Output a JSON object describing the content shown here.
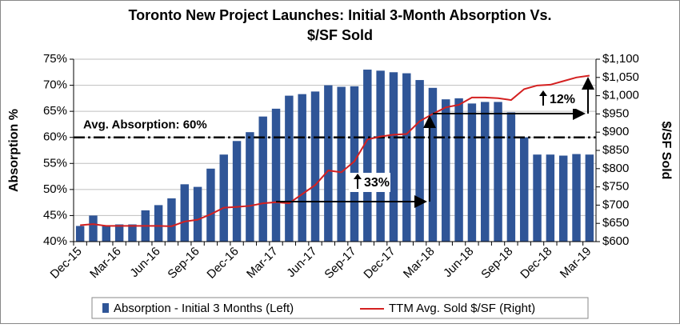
{
  "chart_data": {
    "type": "bar_line",
    "title": "Toronto New Project Launches: Initial 3-Month Absorption Vs.",
    "title_line2": "$/SF Sold",
    "y_label": "Absorption %",
    "y2_label": "$/SF Sold",
    "categories": [
      "Dec-15",
      null,
      null,
      "Mar-16",
      null,
      null,
      "Jun-16",
      null,
      null,
      "Sep-16",
      null,
      null,
      "Dec-16",
      null,
      null,
      "Mar-17",
      null,
      null,
      "Jun-17",
      null,
      null,
      "Sep-17",
      null,
      null,
      "Dec-17",
      null,
      null,
      "Mar-18",
      null,
      null,
      "Jun-18",
      null,
      null,
      "Sep-18",
      null,
      null,
      "Dec-18",
      null,
      null,
      "Mar-19"
    ],
    "series": [
      {
        "name": "Absorption - Initial 3 Months (Left)",
        "type": "bar",
        "color": "#2f5597",
        "values": [
          43,
          45,
          43,
          43.3,
          43.3,
          46,
          47,
          48.3,
          51,
          50.5,
          54,
          56.7,
          59.3,
          61,
          64,
          65.5,
          68,
          68.3,
          68.8,
          70,
          69.7,
          69.8,
          73,
          72.8,
          72.5,
          72.3,
          71,
          69.5,
          67.3,
          67.5,
          66.5,
          66.8,
          66.8,
          64.8,
          60,
          56.7,
          56.7,
          56.5,
          56.8,
          56.7
        ]
      },
      {
        "name": "TTM Avg. Sold $/SF (Right)",
        "type": "line",
        "axis": "y2",
        "color": "#d42020",
        "values": [
          645,
          648,
          643,
          643,
          643,
          643,
          643,
          642,
          655,
          660,
          675,
          693,
          695,
          698,
          705,
          708,
          705,
          730,
          755,
          795,
          790,
          820,
          880,
          888,
          893,
          895,
          930,
          950,
          968,
          975,
          995,
          995,
          993,
          988,
          1018,
          1028,
          1030,
          1040,
          1050,
          1055
        ]
      }
    ],
    "ylim": [
      40,
      75
    ],
    "yticks": [
      {
        "value": 40,
        "label": "40%"
      },
      {
        "value": 45,
        "label": "45%"
      },
      {
        "value": 50,
        "label": "50%"
      },
      {
        "value": 55,
        "label": "55%"
      },
      {
        "value": 60,
        "label": "60%"
      },
      {
        "value": 65,
        "label": "65%"
      },
      {
        "value": 70,
        "label": "70%"
      },
      {
        "value": 75,
        "label": "75%"
      }
    ],
    "y2lim": [
      600,
      1100
    ],
    "y2ticks": [
      {
        "value": 600,
        "label": "$600"
      },
      {
        "value": 650,
        "label": "$650"
      },
      {
        "value": 700,
        "label": "$700"
      },
      {
        "value": 750,
        "label": "$750"
      },
      {
        "value": 800,
        "label": "$800"
      },
      {
        "value": 850,
        "label": "$850"
      },
      {
        "value": 900,
        "label": "$900"
      },
      {
        "value": 950,
        "label": "$950"
      },
      {
        "value": 1000,
        "label": "$1,000"
      },
      {
        "value": 1050,
        "label": "$1,050"
      },
      {
        "value": 1100,
        "label": "$1,100"
      }
    ],
    "grid": true,
    "reference_line": {
      "value": 60,
      "label": "Avg. Absorption: 60%"
    },
    "annotations": [
      "33%",
      "12%"
    ]
  }
}
